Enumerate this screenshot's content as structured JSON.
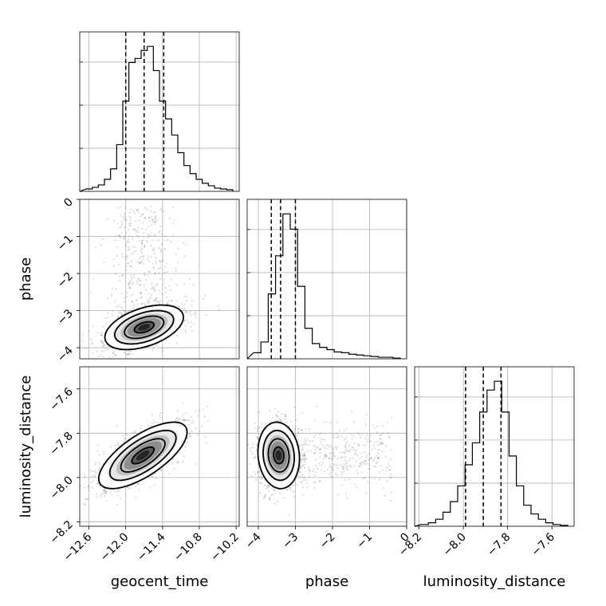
{
  "chart_data": {
    "type": "corner",
    "parameters": [
      {
        "name": "geocent_time",
        "label": "geocent_time",
        "range": [
          -12.75,
          -10.15
        ],
        "ticks": [
          -12.6,
          -12.0,
          -11.4,
          -10.8,
          -10.2
        ],
        "tick_labels": [
          "−12.6",
          "−12.0",
          "−11.4",
          "−10.8",
          "−10.2"
        ],
        "quantiles": [
          -12.0,
          -11.7,
          -11.38
        ],
        "hist_values": [
          3,
          5,
          8,
          15,
          28,
          58,
          112,
          160,
          165,
          175,
          180,
          150,
          112,
          90,
          70,
          48,
          32,
          22,
          15,
          10,
          7,
          4,
          3,
          2
        ]
      },
      {
        "name": "phase",
        "label": "phase",
        "range": [
          -4.3,
          0.0
        ],
        "ticks": [
          -4,
          -3,
          -2,
          -1,
          0
        ],
        "tick_labels": [
          "−4",
          "−3",
          "−2",
          "−1",
          "0"
        ],
        "quantiles": [
          -3.65,
          -3.4,
          -3.0
        ],
        "hist_values": [
          8,
          22,
          85,
          135,
          190,
          170,
          95,
          40,
          20,
          15,
          12,
          9,
          8,
          6,
          5,
          4,
          3,
          2,
          2,
          1
        ]
      },
      {
        "name": "luminosity_distance",
        "label": "luminosity_distance",
        "range": [
          -8.22,
          -7.5
        ],
        "ticks": [
          -8.2,
          -8.0,
          -7.8,
          -7.6
        ],
        "tick_labels": [
          "−8.2",
          "−8.0",
          "−7.8",
          "−7.6"
        ],
        "quantiles": [
          -7.99,
          -7.91,
          -7.83
        ],
        "hist_values": [
          2,
          4,
          8,
          16,
          28,
          46,
          70,
          95,
          130,
          155,
          165,
          130,
          80,
          46,
          24,
          14,
          8,
          4,
          2,
          1
        ]
      }
    ],
    "pairs": [
      {
        "x": "geocent_time",
        "y": "phase",
        "center": [
          -11.7,
          -3.45
        ],
        "sd": [
          0.32,
          0.3
        ],
        "rho": 0.45,
        "tail_fraction": 0.25,
        "tail_y_range": [
          -3.2,
          -0.2
        ],
        "contour_levels_sigma": [
          0.5,
          1.0,
          1.5,
          2.0
        ]
      },
      {
        "x": "geocent_time",
        "y": "luminosity_distance",
        "center": [
          -11.72,
          -7.9
        ],
        "sd": [
          0.36,
          0.075
        ],
        "rho": 0.7,
        "tail_fraction": 0.0,
        "contour_levels_sigma": [
          0.5,
          1.0,
          1.5,
          2.0
        ]
      },
      {
        "x": "phase",
        "y": "luminosity_distance",
        "center": [
          -3.45,
          -7.9
        ],
        "sd": [
          0.28,
          0.075
        ],
        "rho": -0.1,
        "tail_fraction": 0.25,
        "tail_x_range": [
          -3.0,
          -0.4
        ],
        "contour_levels_sigma": [
          0.5,
          1.0,
          1.5,
          2.0
        ]
      }
    ],
    "grid": true
  }
}
